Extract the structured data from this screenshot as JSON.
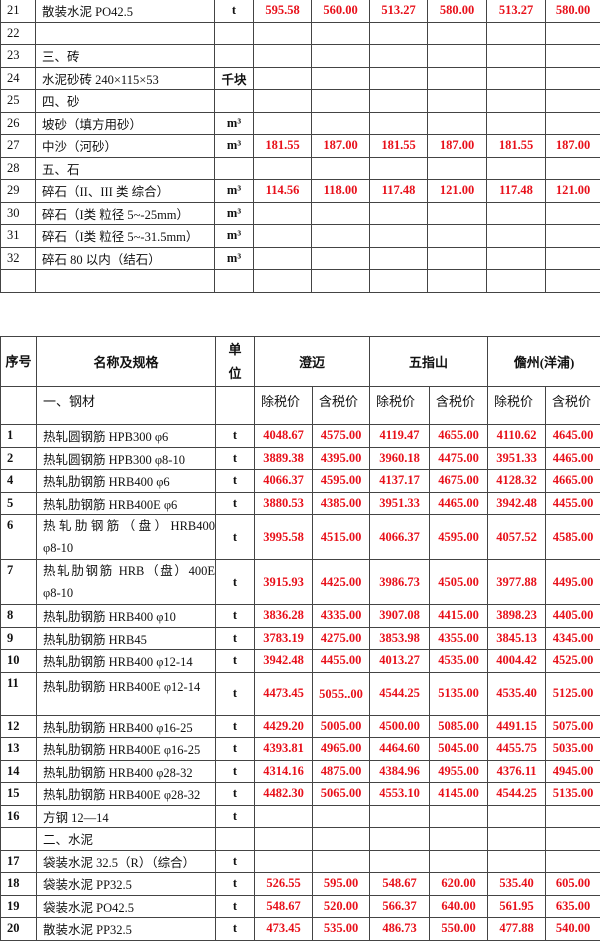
{
  "table_top": {
    "rows": [
      {
        "no": "21",
        "name": "散装水泥 PO42.5",
        "unit": "t",
        "prices": [
          "595.58",
          "560.00",
          "513.27",
          "580.00",
          "513.27",
          "580.00"
        ]
      },
      {
        "no": "22",
        "name": "",
        "unit": "",
        "prices": [
          "",
          "",
          "",
          "",
          "",
          ""
        ]
      },
      {
        "no": "23",
        "name": "三、砖",
        "unit": "",
        "prices": [
          "",
          "",
          "",
          "",
          "",
          ""
        ]
      },
      {
        "no": "24",
        "name": "水泥砂砖  240×115×53",
        "unit": "千块",
        "prices": [
          "",
          "",
          "",
          "",
          "",
          ""
        ]
      },
      {
        "no": "25",
        "name": "四、砂",
        "unit": "",
        "prices": [
          "",
          "",
          "",
          "",
          "",
          ""
        ]
      },
      {
        "no": "26",
        "name": "坡砂（填方用砂）",
        "unit": "m³",
        "prices": [
          "",
          "",
          "",
          "",
          "",
          ""
        ]
      },
      {
        "no": "27",
        "name": "中沙（河砂）",
        "unit": "m³",
        "prices": [
          "181.55",
          "187.00",
          "181.55",
          "187.00",
          "181.55",
          "187.00"
        ]
      },
      {
        "no": "28",
        "name": "五、石",
        "unit": "",
        "prices": [
          "",
          "",
          "",
          "",
          "",
          ""
        ]
      },
      {
        "no": "29",
        "name": "碎石（II、III 类  综合）",
        "unit": "m³",
        "prices": [
          "114.56",
          "118.00",
          "117.48",
          "121.00",
          "117.48",
          "121.00"
        ]
      },
      {
        "no": "30",
        "name": "碎石（I类  粒径 5~-25mm）",
        "unit": "m³",
        "prices": [
          "",
          "",
          "",
          "",
          "",
          ""
        ]
      },
      {
        "no": "31",
        "name": "碎石（I类  粒径 5~-31.5mm）",
        "unit": "m³",
        "prices": [
          "",
          "",
          "",
          "",
          "",
          ""
        ]
      },
      {
        "no": "32",
        "name": "碎石 80 以内（结石）",
        "unit": "m³",
        "prices": [
          "",
          "",
          "",
          "",
          "",
          ""
        ]
      },
      {
        "no": "",
        "name": "",
        "unit": "",
        "prices": [
          "",
          "",
          "",
          "",
          "",
          ""
        ]
      }
    ]
  },
  "table_bottom": {
    "header": {
      "seq": "序号",
      "name": "名称及规格",
      "unit": "单位",
      "regions": [
        "澄迈",
        "五指山",
        "儋州(洋浦)"
      ],
      "section": "一、钢材",
      "price_labels": [
        "除税价",
        "含税价",
        "除税价",
        "含税价",
        "除税价",
        "含税价"
      ]
    },
    "rows": [
      {
        "no": "1",
        "name": "热轧圆钢筋 HPB300 φ6",
        "unit": "t",
        "prices": [
          "4048.67",
          "4575.00",
          "4119.47",
          "4655.00",
          "4110.62",
          "4645.00"
        ]
      },
      {
        "no": "2",
        "name": "热轧圆钢筋 HPB300 φ8-10",
        "unit": "t",
        "prices": [
          "3889.38",
          "4395.00",
          "3960.18",
          "4475.00",
          "3951.33",
          "4465.00"
        ]
      },
      {
        "no": "4",
        "name": "热轧肋钢筋 HRB400 φ6",
        "unit": "t",
        "prices": [
          "4066.37",
          "4595.00",
          "4137.17",
          "4675.00",
          "4128.32",
          "4665.00"
        ]
      },
      {
        "no": "5",
        "name": "热轧肋钢筋 HRB400E φ6",
        "unit": "t",
        "prices": [
          "3880.53",
          "4385.00",
          "3951.33",
          "4465.00",
          "3942.48",
          "4455.00"
        ]
      },
      {
        "no": "6",
        "name": "热 轧 肋 钢 筋 （ 盘 ） HRB400 φ8-10",
        "unit": "t",
        "prices": [
          "3995.58",
          "4515.00",
          "4066.37",
          "4595.00",
          "4057.52",
          "4585.00"
        ],
        "tall": true
      },
      {
        "no": "7",
        "name": "热轧肋钢筋  HRB（盘）400E φ8-10",
        "unit": "t",
        "prices": [
          "3915.93",
          "4425.00",
          "3986.73",
          "4505.00",
          "3977.88",
          "4495.00"
        ],
        "tall": true
      },
      {
        "no": "8",
        "name": "热轧肋钢筋 HRB400 φ10",
        "unit": "t",
        "prices": [
          "3836.28",
          "4335.00",
          "3907.08",
          "4415.00",
          "3898.23",
          "4405.00"
        ]
      },
      {
        "no": "9",
        "name": "热轧肋钢筋 HRB45",
        "unit": "t",
        "prices": [
          "3783.19",
          "4275.00",
          "3853.98",
          "4355.00",
          "3845.13",
          "4345.00"
        ]
      },
      {
        "no": "10",
        "name": "热轧肋钢筋 HRB400 φ12-14",
        "unit": "t",
        "prices": [
          "3942.48",
          "4455.00",
          "4013.27",
          "4535.00",
          "4004.42",
          "4525.00"
        ]
      },
      {
        "no": "11",
        "name": "热轧肋钢筋 HRB400E φ12-14",
        "unit": "t",
        "prices": [
          "4473.45",
          "5055..00",
          "4544.25",
          "5135.00",
          "4535.40",
          "5125.00"
        ],
        "tall": true,
        "nameTop": true
      },
      {
        "no": "12",
        "name": "热轧肋钢筋 HRB400 φ16-25",
        "unit": "t",
        "prices": [
          "4429.20",
          "5005.00",
          "4500.00",
          "5085.00",
          "4491.15",
          "5075.00"
        ]
      },
      {
        "no": "13",
        "name": "热轧肋钢筋 HRB400E φ16-25",
        "unit": "t",
        "prices": [
          "4393.81",
          "4965.00",
          "4464.60",
          "5045.00",
          "4455.75",
          "5035.00"
        ]
      },
      {
        "no": "14",
        "name": "热轧肋钢筋 HRB400 φ28-32",
        "unit": "t",
        "prices": [
          "4314.16",
          "4875.00",
          "4384.96",
          "4955.00",
          "4376.11",
          "4945.00"
        ]
      },
      {
        "no": "15",
        "name": "热轧肋钢筋 HRB400E φ28-32",
        "unit": "t",
        "prices": [
          "4482.30",
          "5065.00",
          "4553.10",
          "4145.00",
          "4544.25",
          "5135.00"
        ]
      },
      {
        "no": "16",
        "name": "方钢 12—14",
        "unit": "t",
        "prices": [
          "",
          "",
          "",
          "",
          "",
          ""
        ]
      },
      {
        "no": "",
        "name": "二、水泥",
        "unit": "",
        "prices": [
          "",
          "",
          "",
          "",
          "",
          ""
        ]
      },
      {
        "no": "17",
        "name": "袋装水泥 32.5（R）（综合）",
        "unit": "t",
        "prices": [
          "",
          "",
          "",
          "",
          "",
          ""
        ]
      },
      {
        "no": "18",
        "name": "袋装水泥 PP32.5",
        "unit": "t",
        "prices": [
          "526.55",
          "595.00",
          "548.67",
          "620.00",
          "535.40",
          "605.00"
        ]
      },
      {
        "no": "19",
        "name": "袋装水泥 PO42.5",
        "unit": "t",
        "prices": [
          "548.67",
          "520.00",
          "566.37",
          "640.00",
          "561.95",
          "635.00"
        ]
      },
      {
        "no": "20",
        "name": "散装水泥 PP32.5",
        "unit": "t",
        "prices": [
          "473.45",
          "535.00",
          "486.73",
          "550.00",
          "477.88",
          "540.00"
        ]
      }
    ]
  },
  "colors": {
    "price": "#e8101a",
    "border": "#444444"
  }
}
